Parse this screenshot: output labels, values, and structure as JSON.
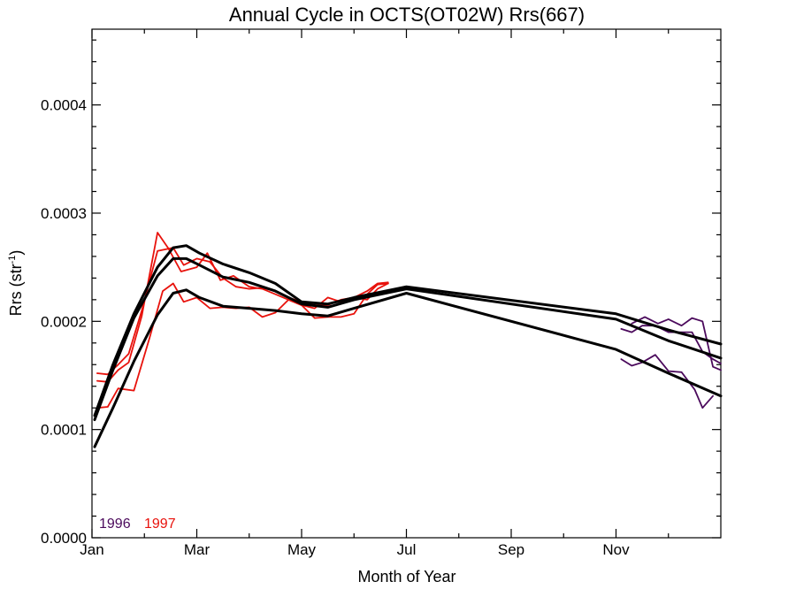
{
  "chart_data": {
    "type": "line",
    "title": "Annual Cycle in OCTS(OT02W) Rrs(667)",
    "xlabel": "Month of Year",
    "ylabel": "Rrs (str",
    "ylabel_superscript": "-1",
    "ylabel_suffix": ")",
    "xlim": [
      1,
      13
    ],
    "ylim": [
      0.0,
      0.00047
    ],
    "x_ticks": [
      {
        "value": 1,
        "label": "Jan"
      },
      {
        "value": 3,
        "label": "Mar"
      },
      {
        "value": 5,
        "label": "May"
      },
      {
        "value": 7,
        "label": "Jul"
      },
      {
        "value": 9,
        "label": "Sep"
      },
      {
        "value": 11,
        "label": "Nov"
      }
    ],
    "y_ticks": [
      {
        "value": 0.0,
        "label": "0.0000"
      },
      {
        "value": 0.0001,
        "label": "0.0001"
      },
      {
        "value": 0.0002,
        "label": "0.0002"
      },
      {
        "value": 0.0003,
        "label": "0.0003"
      },
      {
        "value": 0.0004,
        "label": "0.0004"
      }
    ],
    "grid": false,
    "legend": [
      {
        "label": "1996",
        "color": "#4b0a5c"
      },
      {
        "label": "1997",
        "color": "#e8120c"
      }
    ],
    "legend_position": "bottom-left",
    "series": [
      {
        "color": "#4b0a5c",
        "width": 1.8,
        "points": [
          [
            11.1,
            0.000165
          ],
          [
            11.3,
            0.000159
          ],
          [
            11.5,
            0.000162
          ],
          [
            11.75,
            0.000169
          ],
          [
            12.0,
            0.000154
          ],
          [
            12.25,
            0.000153
          ],
          [
            12.5,
            0.000137
          ],
          [
            12.65,
            0.00012
          ],
          [
            12.85,
            0.000131
          ]
        ]
      },
      {
        "color": "#4b0a5c",
        "width": 1.8,
        "points": [
          [
            11.1,
            0.000193
          ],
          [
            11.3,
            0.00019
          ],
          [
            11.5,
            0.000196
          ],
          [
            11.75,
            0.000196
          ],
          [
            12.0,
            0.00019
          ],
          [
            12.25,
            0.00019
          ],
          [
            12.45,
            0.00019
          ],
          [
            12.65,
            0.000172
          ],
          [
            12.85,
            0.000165
          ],
          [
            13.0,
            0.000161
          ]
        ]
      },
      {
        "color": "#4b0a5c",
        "width": 1.8,
        "points": [
          [
            11.3,
            0.000198
          ],
          [
            11.55,
            0.000204
          ],
          [
            11.8,
            0.000198
          ],
          [
            12.0,
            0.000202
          ],
          [
            12.25,
            0.000196
          ],
          [
            12.45,
            0.000203
          ],
          [
            12.65,
            0.0002
          ],
          [
            12.85,
            0.000158
          ],
          [
            13.0,
            0.000155
          ]
        ]
      },
      {
        "color": "#e8120c",
        "width": 1.8,
        "points": [
          [
            1.1,
            0.000152
          ],
          [
            1.3,
            0.000151
          ],
          [
            1.5,
            0.00016
          ],
          [
            1.7,
            0.00017
          ],
          [
            1.95,
            0.00021
          ],
          [
            2.25,
            0.000265
          ],
          [
            2.55,
            0.000268
          ],
          [
            2.75,
            0.000252
          ],
          [
            3.0,
            0.000258
          ],
          [
            3.25,
            0.000255
          ],
          [
            3.5,
            0.00024
          ],
          [
            3.75,
            0.000232
          ],
          [
            4.0,
            0.00023
          ],
          [
            4.25,
            0.000231
          ],
          [
            4.5,
            0.000228
          ],
          [
            4.75,
            0.000222
          ],
          [
            5.0,
            0.000218
          ],
          [
            5.25,
            0.000215
          ],
          [
            5.5,
            0.000215
          ],
          [
            5.75,
            0.00022
          ],
          [
            6.0,
            0.000222
          ],
          [
            6.25,
            0.00022
          ],
          [
            6.45,
            0.00023
          ],
          [
            6.65,
            0.000235
          ]
        ]
      },
      {
        "color": "#e8120c",
        "width": 1.8,
        "points": [
          [
            1.1,
            0.000145
          ],
          [
            1.3,
            0.000144
          ],
          [
            1.5,
            0.000155
          ],
          [
            1.7,
            0.000162
          ],
          [
            1.95,
            0.000205
          ],
          [
            2.25,
            0.000282
          ],
          [
            2.45,
            0.000268
          ],
          [
            2.7,
            0.000246
          ],
          [
            3.0,
            0.00025
          ],
          [
            3.2,
            0.000263
          ],
          [
            3.45,
            0.000238
          ],
          [
            3.7,
            0.000242
          ],
          [
            4.0,
            0.000232
          ],
          [
            4.25,
            0.00023
          ],
          [
            4.5,
            0.000225
          ],
          [
            4.75,
            0.00022
          ],
          [
            5.0,
            0.000215
          ],
          [
            5.25,
            0.000212
          ],
          [
            5.5,
            0.000222
          ],
          [
            5.75,
            0.000218
          ],
          [
            6.0,
            0.000222
          ],
          [
            6.25,
            0.000228
          ],
          [
            6.45,
            0.000235
          ],
          [
            6.65,
            0.000236
          ]
        ]
      },
      {
        "color": "#e8120c",
        "width": 1.8,
        "points": [
          [
            1.1,
            0.00012
          ],
          [
            1.3,
            0.000121
          ],
          [
            1.5,
            0.000138
          ],
          [
            1.8,
            0.000136
          ],
          [
            2.1,
            0.000185
          ],
          [
            2.35,
            0.000228
          ],
          [
            2.55,
            0.000235
          ],
          [
            2.75,
            0.000218
          ],
          [
            3.0,
            0.000222
          ],
          [
            3.25,
            0.000212
          ],
          [
            3.5,
            0.000213
          ],
          [
            3.75,
            0.000212
          ],
          [
            4.0,
            0.000213
          ],
          [
            4.25,
            0.000204
          ],
          [
            4.5,
            0.000208
          ],
          [
            4.75,
            0.00022
          ],
          [
            5.0,
            0.000215
          ],
          [
            5.25,
            0.000203
          ],
          [
            5.5,
            0.000204
          ],
          [
            5.75,
            0.000204
          ],
          [
            6.0,
            0.000207
          ],
          [
            6.25,
            0.000225
          ],
          [
            6.45,
            0.000234
          ],
          [
            6.65,
            0.000235
          ]
        ]
      },
      {
        "color": "#000000",
        "width": 3,
        "points": [
          [
            1.05,
            0.000113
          ],
          [
            1.4,
            0.00016
          ],
          [
            1.8,
            0.000207
          ],
          [
            2.25,
            0.00025
          ],
          [
            2.55,
            0.000268
          ],
          [
            2.8,
            0.00027
          ],
          [
            3.05,
            0.000263
          ],
          [
            3.5,
            0.000253
          ],
          [
            4.0,
            0.000245
          ],
          [
            4.5,
            0.000235
          ],
          [
            5.0,
            0.000218
          ],
          [
            5.5,
            0.000216
          ],
          [
            6.0,
            0.000222
          ],
          [
            7.0,
            0.000232
          ],
          [
            11.0,
            0.000207
          ],
          [
            12.0,
            0.000192
          ],
          [
            13.0,
            0.000179
          ]
        ]
      },
      {
        "color": "#000000",
        "width": 3,
        "points": [
          [
            1.05,
            0.000109
          ],
          [
            1.4,
            0.000155
          ],
          [
            1.8,
            0.000203
          ],
          [
            2.25,
            0.000242
          ],
          [
            2.55,
            0.000258
          ],
          [
            2.8,
            0.000258
          ],
          [
            3.05,
            0.000252
          ],
          [
            3.5,
            0.000241
          ],
          [
            4.0,
            0.000236
          ],
          [
            4.5,
            0.000228
          ],
          [
            5.0,
            0.000216
          ],
          [
            5.5,
            0.000213
          ],
          [
            6.0,
            0.00022
          ],
          [
            7.0,
            0.00023
          ],
          [
            11.0,
            0.000202
          ],
          [
            12.0,
            0.000182
          ],
          [
            13.0,
            0.000166
          ]
        ]
      },
      {
        "color": "#000000",
        "width": 3,
        "points": [
          [
            1.05,
            8.4e-05
          ],
          [
            1.4,
            0.00012
          ],
          [
            1.8,
            0.000163
          ],
          [
            2.25,
            0.000206
          ],
          [
            2.55,
            0.000226
          ],
          [
            2.8,
            0.000229
          ],
          [
            3.05,
            0.000222
          ],
          [
            3.5,
            0.000214
          ],
          [
            4.0,
            0.000212
          ],
          [
            4.5,
            0.00021
          ],
          [
            5.0,
            0.000207
          ],
          [
            5.5,
            0.000205
          ],
          [
            6.0,
            0.000212
          ],
          [
            7.0,
            0.000226
          ],
          [
            11.0,
            0.000174
          ],
          [
            12.0,
            0.000152
          ],
          [
            13.0,
            0.000131
          ]
        ]
      }
    ]
  }
}
